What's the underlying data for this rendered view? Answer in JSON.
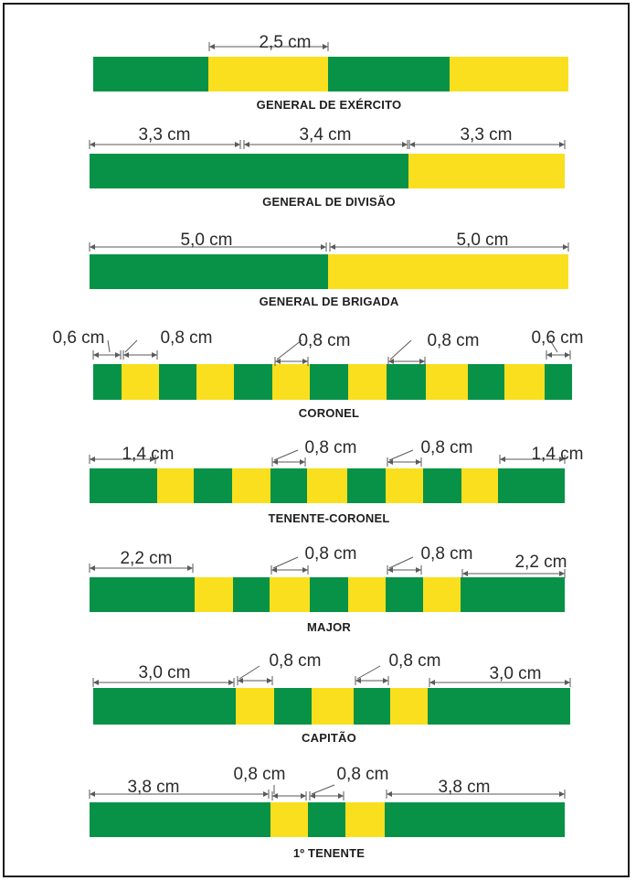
{
  "colors": {
    "green": "#079247",
    "yellow": "#f9df1e",
    "frame": "#1c1c1c",
    "dimension_line": "#5a5a5a"
  },
  "insignia": [
    {
      "rank": "GENERAL DE EXÉRCITO",
      "stripes": [
        "green",
        "yellow",
        "green",
        "yellow"
      ],
      "measurements": [
        "2,5 cm"
      ]
    },
    {
      "rank": "GENERAL DE DIVISÃO",
      "stripes": [
        "green",
        "green",
        "yellow"
      ],
      "measurements": [
        "3,3 cm",
        "3,4 cm",
        "3,3 cm"
      ]
    },
    {
      "rank": "GENERAL DE BRIGADA",
      "stripes": [
        "green",
        "yellow"
      ],
      "measurements": [
        "5,0 cm",
        "5,0 cm"
      ]
    },
    {
      "rank": "CORONEL",
      "stripes": [
        "green",
        "yellow",
        "green",
        "yellow",
        "green",
        "yellow",
        "green",
        "yellow",
        "green",
        "yellow",
        "green",
        "yellow",
        "green"
      ],
      "measurements": [
        "0,6 cm",
        "0,8 cm",
        "0,8 cm",
        "0,8 cm",
        "0,6 cm"
      ]
    },
    {
      "rank": "TENENTE-CORONEL",
      "stripes": [
        "green",
        "yellow",
        "green",
        "yellow",
        "green",
        "yellow",
        "green",
        "yellow",
        "green",
        "yellow",
        "green"
      ],
      "measurements": [
        "1,4 cm",
        "0,8 cm",
        "0,8 cm",
        "1,4 cm"
      ]
    },
    {
      "rank": "MAJOR",
      "stripes": [
        "green",
        "yellow",
        "green",
        "yellow",
        "green",
        "yellow",
        "green",
        "yellow",
        "green"
      ],
      "measurements": [
        "2,2 cm",
        "0,8 cm",
        "0,8 cm",
        "2,2 cm"
      ]
    },
    {
      "rank": "CAPITÃO",
      "stripes": [
        "green",
        "yellow",
        "green",
        "yellow",
        "green",
        "yellow",
        "green"
      ],
      "measurements": [
        "3,0 cm",
        "0,8 cm",
        "0,8 cm",
        "3,0 cm"
      ]
    },
    {
      "rank": "1º TENENTE",
      "stripes": [
        "green",
        "yellow",
        "green",
        "yellow",
        "green"
      ],
      "measurements": [
        "3,8 cm",
        "0,8 cm",
        "0,8 cm",
        "3,8 cm"
      ]
    }
  ]
}
